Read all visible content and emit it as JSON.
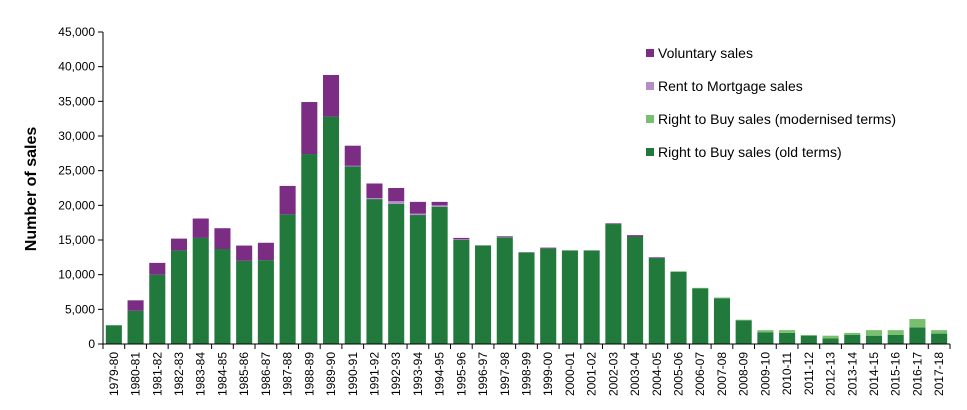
{
  "chart_data": {
    "type": "bar",
    "stacked": true,
    "ylabel": "Number of sales",
    "xlabel": "",
    "ylim": [
      0,
      45000
    ],
    "yticks": [
      0,
      5000,
      10000,
      15000,
      20000,
      25000,
      30000,
      35000,
      40000,
      45000
    ],
    "ytick_labels": [
      "0",
      "5,000",
      "10,000",
      "15,000",
      "20,000",
      "25,000",
      "30,000",
      "35,000",
      "40,000",
      "45,000"
    ],
    "grid": false,
    "legend_position": "top-right",
    "categories": [
      "1979-80",
      "1980-81",
      "1981-82",
      "1982-83",
      "1983-84",
      "1984-85",
      "1985-86",
      "1986-87",
      "1987-88",
      "1988-89",
      "1989-90",
      "1990-91",
      "1991-92",
      "1992-93",
      "1993-94",
      "1994-95",
      "1995-96",
      "1996-97",
      "1997-98",
      "1998-99",
      "1999-00",
      "2000-01",
      "2001-02",
      "2002-03",
      "2003-04",
      "2004-05",
      "2005-06",
      "2006-07",
      "2007-08",
      "2008-09",
      "2009-10",
      "2010-11",
      "2011-12",
      "2012-13",
      "2013-14",
      "2014-15",
      "2015-16",
      "2016-17",
      "2017-18"
    ],
    "series": [
      {
        "name": "Right to Buy sales (old terms)",
        "color": "#217a3c",
        "values": [
          2700,
          4800,
          10000,
          13500,
          15300,
          13700,
          12000,
          12100,
          18700,
          27400,
          32800,
          25600,
          20900,
          20200,
          18600,
          19800,
          15000,
          14200,
          15400,
          13200,
          13800,
          13500,
          13500,
          17300,
          15500,
          12400,
          10400,
          8000,
          6600,
          3400,
          1700,
          1600,
          1200,
          800,
          1300,
          1200,
          1300,
          2400,
          1500
        ]
      },
      {
        "name": "Right to Buy sales (modernised terms)",
        "color": "#79bf70",
        "values": [
          0,
          0,
          0,
          0,
          0,
          0,
          0,
          0,
          0,
          0,
          0,
          0,
          0,
          0,
          0,
          0,
          0,
          0,
          0,
          0,
          0,
          0,
          0,
          0,
          0,
          0,
          100,
          100,
          100,
          100,
          300,
          400,
          100,
          400,
          300,
          800,
          700,
          1200,
          500
        ]
      },
      {
        "name": "Rent to Mortgage sales",
        "color": "#b48ec8",
        "values": [
          0,
          0,
          0,
          0,
          0,
          0,
          0,
          0,
          0,
          0,
          0,
          100,
          150,
          400,
          200,
          200,
          100,
          50,
          50,
          50,
          0,
          0,
          0,
          0,
          0,
          0,
          0,
          0,
          0,
          0,
          0,
          0,
          0,
          0,
          0,
          0,
          0,
          0,
          0
        ]
      },
      {
        "name": "Voluntary sales",
        "color": "#7b2d83",
        "values": [
          0,
          1500,
          1700,
          1700,
          2800,
          3000,
          2200,
          2500,
          4100,
          7500,
          6000,
          2900,
          2100,
          1900,
          1700,
          500,
          200,
          0,
          100,
          0,
          100,
          0,
          0,
          100,
          200,
          100,
          0,
          0,
          0,
          0,
          0,
          0,
          0,
          0,
          0,
          0,
          0,
          0,
          0
        ]
      }
    ],
    "legend_order": [
      "Voluntary sales",
      "Rent to Mortgage sales",
      "Right to Buy sales (modernised terms)",
      "Right to Buy sales (old terms)"
    ]
  }
}
